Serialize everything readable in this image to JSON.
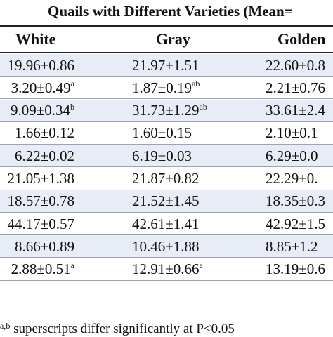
{
  "table": {
    "title": "Quails with Different Varieties (Mean=",
    "columns": [
      "White",
      "Gray",
      "Golden"
    ],
    "rows": [
      {
        "white": "19.96±0.86",
        "white_sup": "",
        "gray": "21.97±1.51",
        "gray_sup": "",
        "golden": "22.60±0.8",
        "golden_sup": ""
      },
      {
        "white": "3.20±0.49",
        "white_sup": "a",
        "gray": "1.87±0.19",
        "gray_sup": "ab",
        "golden": "2.21±0.76",
        "golden_sup": ""
      },
      {
        "white": "9.09±0.34",
        "white_sup": "b",
        "gray": "31.73±1.29",
        "gray_sup": "ab",
        "golden": "33.61±2.4",
        "golden_sup": ""
      },
      {
        "white": "1.66±0.12",
        "white_sup": "",
        "gray": "1.60±0.15",
        "gray_sup": "",
        "golden": "2.10±0.1",
        "golden_sup": ""
      },
      {
        "white": "6.22±0.02",
        "white_sup": "",
        "gray": "6.19±0.03",
        "gray_sup": "",
        "golden": "6.29±0.0",
        "golden_sup": ""
      },
      {
        "white": "21.05±1.38",
        "white_sup": "",
        "gray": "21.87±0.82",
        "gray_sup": "",
        "golden": "22.29±0.",
        "golden_sup": ""
      },
      {
        "white": "18.57±0.78",
        "white_sup": "",
        "gray": "21.52±1.45",
        "gray_sup": "",
        "golden": "18.35±0.3",
        "golden_sup": ""
      },
      {
        "white": "44.17±0.57",
        "white_sup": "",
        "gray": "42.61±1.41",
        "gray_sup": "",
        "golden": "42.92±1.5",
        "golden_sup": ""
      },
      {
        "white": "8.66±0.89",
        "white_sup": "",
        "gray": "10.46±1.88",
        "gray_sup": "",
        "golden": "8.85±1.2",
        "golden_sup": ""
      },
      {
        "white": "2.88±0.51",
        "white_sup": "a",
        "gray": "12.91±0.66",
        "gray_sup": "a",
        "golden": "13.19±0.6",
        "golden_sup": ""
      }
    ],
    "footnote": "superscripts differ significantly at P<0.05",
    "shade_color": "#e8ecf6"
  }
}
